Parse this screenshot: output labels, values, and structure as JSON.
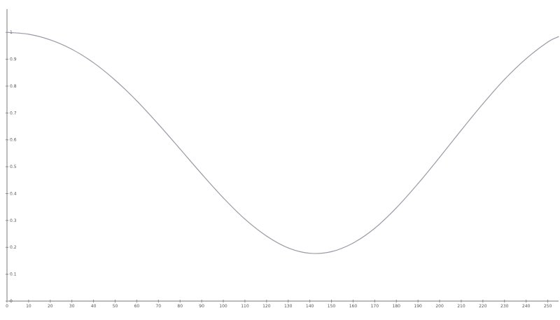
{
  "chart_data": {
    "type": "line",
    "title": "",
    "xlabel": "",
    "ylabel": "",
    "corner_label": "",
    "xlim": [
      0,
      255
    ],
    "ylim": [
      0,
      1.05
    ],
    "grid": false,
    "x_ticks": [
      0,
      10,
      20,
      30,
      40,
      50,
      60,
      70,
      80,
      90,
      100,
      110,
      120,
      130,
      140,
      150,
      160,
      170,
      180,
      190,
      200,
      210,
      220,
      230,
      240,
      250
    ],
    "y_ticks": [
      0,
      0.1,
      0.2,
      0.3,
      0.4,
      0.5,
      0.6,
      0.7,
      0.8,
      0.9,
      1
    ],
    "series": [
      {
        "x": [
          0,
          10,
          20,
          30,
          40,
          50,
          60,
          70,
          80,
          90,
          100,
          110,
          120,
          130,
          140,
          150,
          160,
          170,
          180,
          190,
          200,
          210,
          220,
          230,
          240,
          250,
          255
        ],
        "values": [
          1.0,
          0.993,
          0.972,
          0.937,
          0.887,
          0.822,
          0.745,
          0.658,
          0.566,
          0.473,
          0.384,
          0.305,
          0.242,
          0.198,
          0.178,
          0.184,
          0.216,
          0.271,
          0.347,
          0.437,
          0.535,
          0.636,
          0.734,
          0.825,
          0.902,
          0.964,
          0.984
        ],
        "color": "#9a9aa6"
      }
    ]
  }
}
